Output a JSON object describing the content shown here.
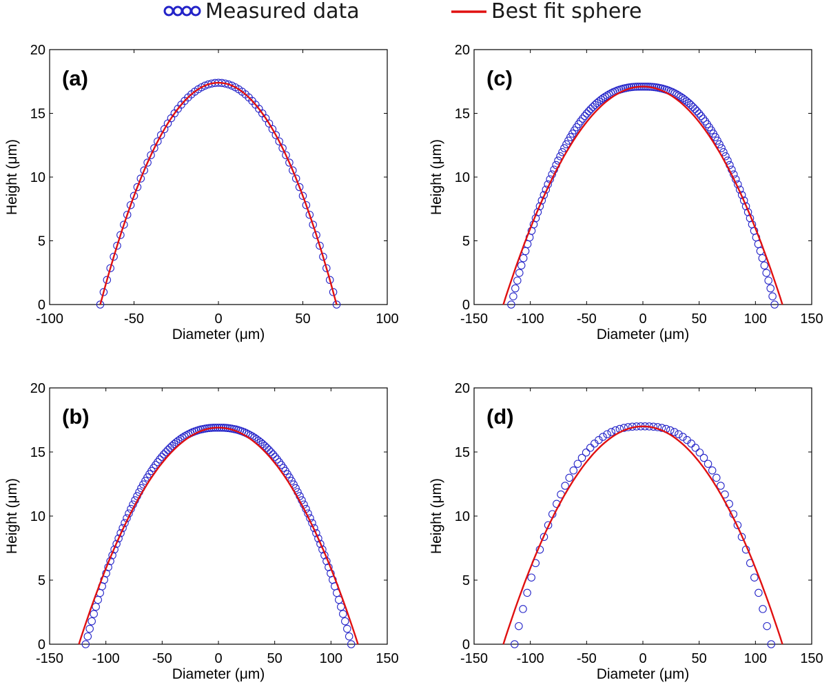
{
  "legend": {
    "measured_label": "Measured data",
    "fit_label": "Best fit sphere",
    "measured_color": "#2323c8",
    "fit_color": "#e01010"
  },
  "chart_data": [
    {
      "type": "scatter",
      "panel_label": "(a)",
      "xlabel": "Diameter (μm)",
      "ylabel": "Height (μm)",
      "xlim": [
        -100,
        100
      ],
      "ylim": [
        0,
        20
      ],
      "xticks": [
        -100,
        -50,
        0,
        50,
        100
      ],
      "yticks": [
        0,
        5,
        10,
        15,
        20
      ],
      "series": [
        {
          "name": "Measured data",
          "kind": "markers",
          "apex_x": 0,
          "apex_height": 17.4,
          "x_left": -70,
          "x_right": 70,
          "point_count": 71,
          "profile_exponent": 2.0
        },
        {
          "name": "Best fit sphere",
          "kind": "line",
          "apex_x": 0,
          "apex_height": 17.4,
          "x_left": -70,
          "x_right": 70,
          "profile_exponent": 2.0
        }
      ]
    },
    {
      "type": "scatter",
      "panel_label": "(b)",
      "xlabel": "Diameter (μm)",
      "ylabel": "Height (μm)",
      "xlim": [
        -150,
        150
      ],
      "ylim": [
        0,
        20
      ],
      "xticks": [
        -150,
        -100,
        -50,
        0,
        50,
        100,
        150
      ],
      "yticks": [
        0,
        5,
        10,
        15,
        20
      ],
      "series": [
        {
          "name": "Measured data",
          "kind": "markers",
          "apex_x": 0,
          "apex_height": 16.9,
          "x_left": -118,
          "x_right": 118,
          "point_count": 130,
          "profile_exponent": 2.35
        },
        {
          "name": "Best fit sphere",
          "kind": "line",
          "apex_x": 0,
          "apex_height": 16.9,
          "x_left": -124,
          "x_right": 124,
          "profile_exponent": 2.0
        }
      ]
    },
    {
      "type": "scatter",
      "panel_label": "(c)",
      "xlabel": "Diameter (μm)",
      "ylabel": "Height (μm)",
      "xlim": [
        -150,
        150
      ],
      "ylim": [
        0,
        20
      ],
      "xticks": [
        -150,
        -100,
        -50,
        0,
        50,
        100,
        150
      ],
      "yticks": [
        0,
        5,
        10,
        15,
        20
      ],
      "series": [
        {
          "name": "Measured data",
          "kind": "markers",
          "apex_x": 0,
          "apex_height": 17.1,
          "x_left": -117,
          "x_right": 117,
          "point_count": 130,
          "profile_exponent": 2.45
        },
        {
          "name": "Best fit sphere",
          "kind": "line",
          "apex_x": 0,
          "apex_height": 17.1,
          "x_left": -124,
          "x_right": 124,
          "profile_exponent": 2.0
        }
      ]
    },
    {
      "type": "scatter",
      "panel_label": "(d)",
      "xlabel": "Diameter (μm)",
      "ylabel": "Height (μm)",
      "xlim": [
        -150,
        150
      ],
      "ylim": [
        0,
        20
      ],
      "xticks": [
        -150,
        -100,
        -50,
        0,
        50,
        100,
        150
      ],
      "yticks": [
        0,
        5,
        10,
        15,
        20
      ],
      "series": [
        {
          "name": "Measured data",
          "kind": "markers",
          "apex_x": 0,
          "apex_height": 17.0,
          "x_left": -114,
          "x_right": 114,
          "point_count": 62,
          "profile_exponent": 2.6
        },
        {
          "name": "Best fit sphere",
          "kind": "line",
          "apex_x": 0,
          "apex_height": 17.0,
          "x_left": -124,
          "x_right": 124,
          "profile_exponent": 2.0
        }
      ]
    }
  ]
}
